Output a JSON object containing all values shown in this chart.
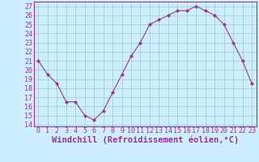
{
  "x": [
    0,
    1,
    2,
    3,
    4,
    5,
    6,
    7,
    8,
    9,
    10,
    11,
    12,
    13,
    14,
    15,
    16,
    17,
    18,
    19,
    20,
    21,
    22,
    23
  ],
  "y": [
    21,
    19.5,
    18.5,
    16.5,
    16.5,
    15,
    14.5,
    15.5,
    17.5,
    19.5,
    21.5,
    23,
    25,
    25.5,
    26,
    26.5,
    26.5,
    27,
    26.5,
    26,
    25,
    23,
    21,
    18.5
  ],
  "line_color": "#993399",
  "marker_color": "#993399",
  "bg_color": "#cceeff",
  "grid_color": "#99cccc",
  "xlabel": "Windchill (Refroidissement éolien,°C)",
  "ylim": [
    13.8,
    27.5
  ],
  "yticks": [
    14,
    15,
    16,
    17,
    18,
    19,
    20,
    21,
    22,
    23,
    24,
    25,
    26,
    27
  ],
  "xticks": [
    0,
    1,
    2,
    3,
    4,
    5,
    6,
    7,
    8,
    9,
    10,
    11,
    12,
    13,
    14,
    15,
    16,
    17,
    18,
    19,
    20,
    21,
    22,
    23
  ],
  "xlabel_fontsize": 7.5,
  "tick_fontsize": 6,
  "spine_color": "#993399",
  "xlim": [
    -0.5,
    23.5
  ]
}
